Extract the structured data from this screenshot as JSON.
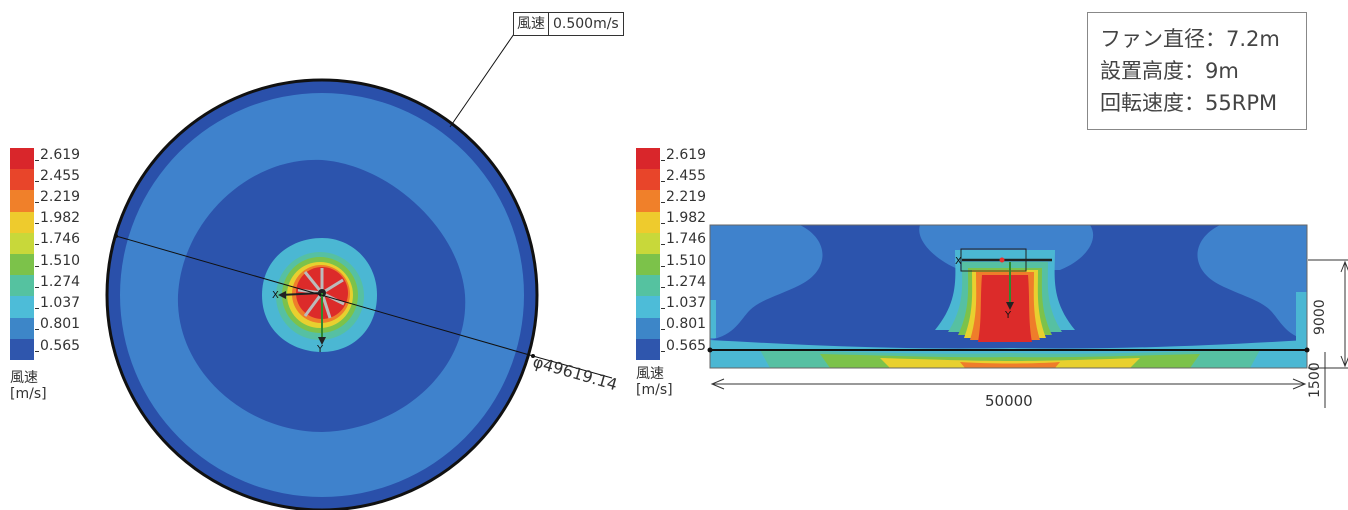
{
  "info_box": {
    "lines": [
      "ファン直径：7.2m",
      "設置高度：9m",
      "回転速度：55RPM"
    ]
  },
  "callout": {
    "label": "風速",
    "value": "0.500m/s"
  },
  "legend": {
    "ticks": [
      "2.619",
      "2.455",
      "2.219",
      "1.982",
      "1.746",
      "1.510",
      "1.274",
      "1.037",
      "0.801",
      "0.565"
    ],
    "unit_line1": "風速",
    "unit_line2": "[m/s]",
    "colors": [
      "#d9262b",
      "#e8452a",
      "#f0802a",
      "#eecb2d",
      "#c8d83a",
      "#7cc24a",
      "#55c2a0",
      "#4dbcd8",
      "#3d86c8",
      "#2f56ad"
    ]
  },
  "plan_view": {
    "diameter_label": "φ49619.14"
  },
  "section_view": {
    "width_label": "50000",
    "height_label": "9000",
    "floor_label": "1500"
  },
  "colors": {
    "outer_ring": "#2a55b0",
    "blue_mid": "#3a7fcc",
    "blue_dark": "#2a50aa",
    "cyan": "#46b8d6",
    "teal": "#52bfa6",
    "green": "#78c14a",
    "yellow": "#e6d02e",
    "orange": "#ef7d2a",
    "red": "#dc2b2a"
  }
}
